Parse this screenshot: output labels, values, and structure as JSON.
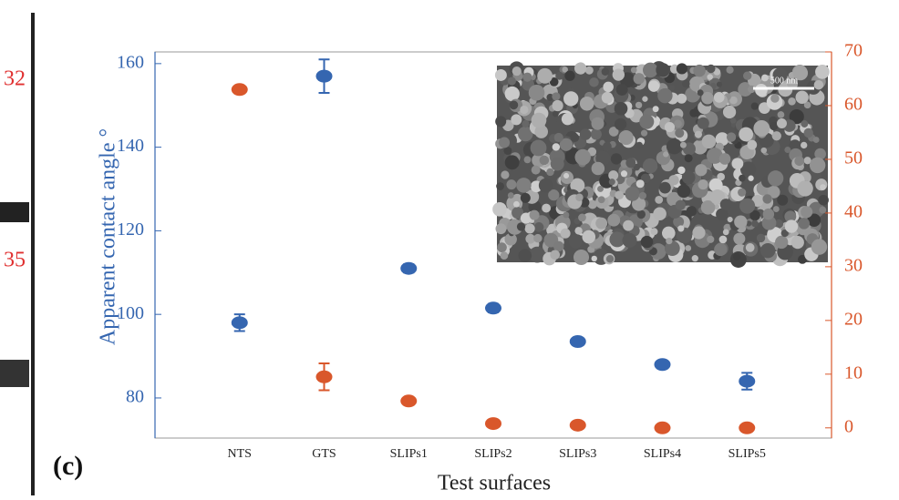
{
  "chart_data": {
    "type": "scatter",
    "panel_label": "(c)",
    "xlabel": "Test surfaces",
    "ylabel": "Apparent contact angle °",
    "inset_scale_label": "500 nm",
    "side_fragments": [
      "32",
      "35"
    ],
    "categories": [
      "NTS",
      "GTS",
      "SLIPs1",
      "SLIPs2",
      "SLIPs3",
      "SLIPs4",
      "SLIPs5"
    ],
    "series": [
      {
        "color": "#3566b0",
        "values": [
          98,
          157,
          111,
          101.5,
          93.5,
          88,
          84
        ],
        "errors": [
          2,
          4,
          1,
          1,
          0.8,
          0.8,
          2
        ]
      },
      {
        "color": "#d9572b",
        "axis": "y2",
        "values": [
          63,
          9.5,
          5,
          0.8,
          0.5,
          0,
          0
        ],
        "errors": [
          0.5,
          2.5,
          0.5,
          0.5,
          0.5,
          0.5,
          0.5
        ]
      }
    ],
    "ylim": [
      70.4,
      162.8
    ],
    "yticks": [
      80,
      100,
      120,
      140,
      160
    ],
    "y2lim": [
      -1.9,
      70
    ],
    "y2ticks": [
      0,
      10,
      20,
      30,
      40,
      50,
      60,
      70
    ]
  }
}
